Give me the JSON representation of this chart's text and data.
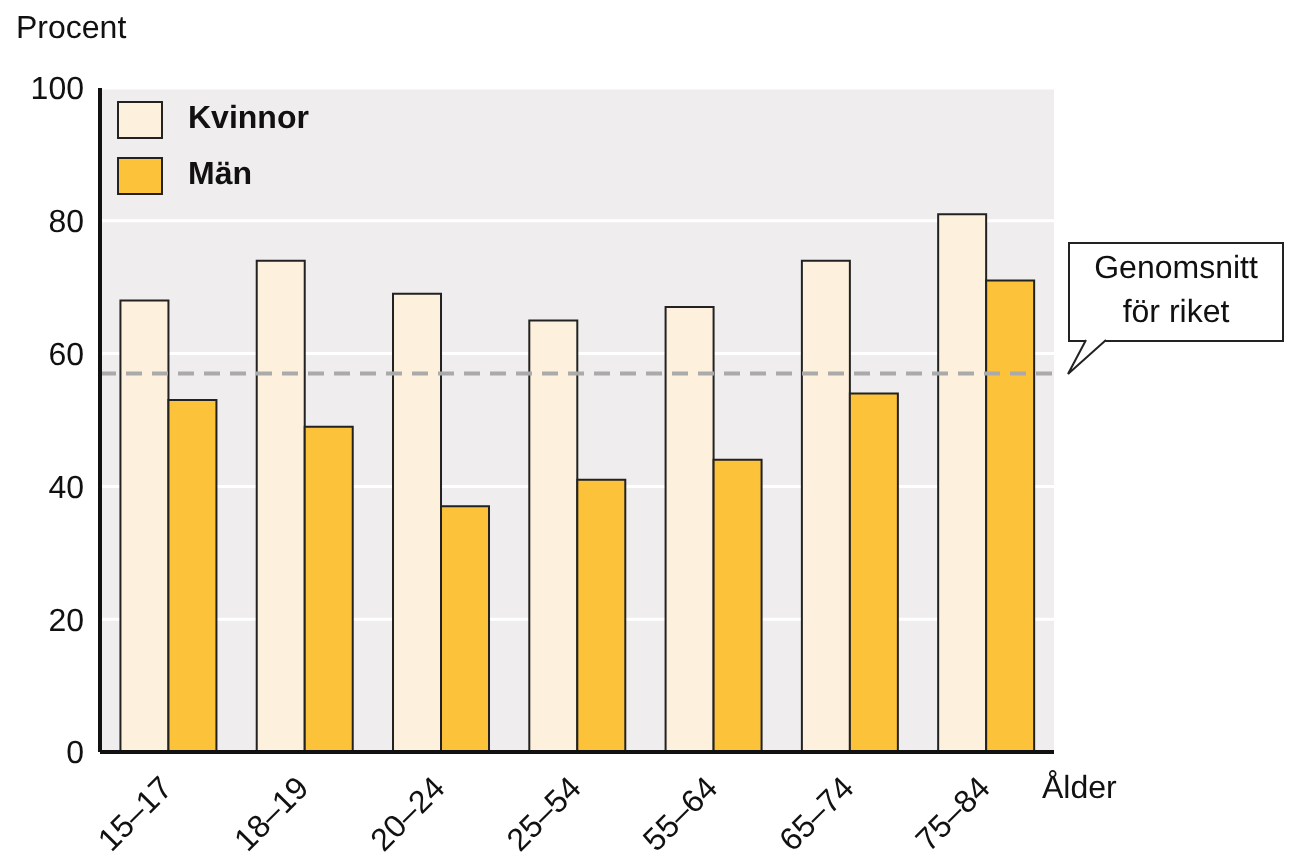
{
  "chart_data": {
    "type": "bar",
    "ylabel": "Procent",
    "xlabel": "Ålder",
    "categories": [
      "15–17",
      "18–19",
      "20–24",
      "25–54",
      "55–64",
      "65–74",
      "75–84"
    ],
    "series": [
      {
        "name": "Kvinnor",
        "color": "#fdf0dc",
        "values": [
          68,
          74,
          69,
          65,
          67,
          74,
          81
        ]
      },
      {
        "name": "Män",
        "color": "#fcc23a",
        "values": [
          53,
          49,
          37,
          41,
          44,
          54,
          71
        ]
      }
    ],
    "ylim": [
      0,
      100
    ],
    "yticks": [
      0,
      20,
      40,
      60,
      80,
      100
    ],
    "grid": "y",
    "legend": "top left",
    "ref_lines": [
      {
        "axis": "y",
        "value": 57,
        "label": "Genomsnitt för riket",
        "color": "#aaaaaa",
        "line_style": "dashed"
      }
    ]
  }
}
